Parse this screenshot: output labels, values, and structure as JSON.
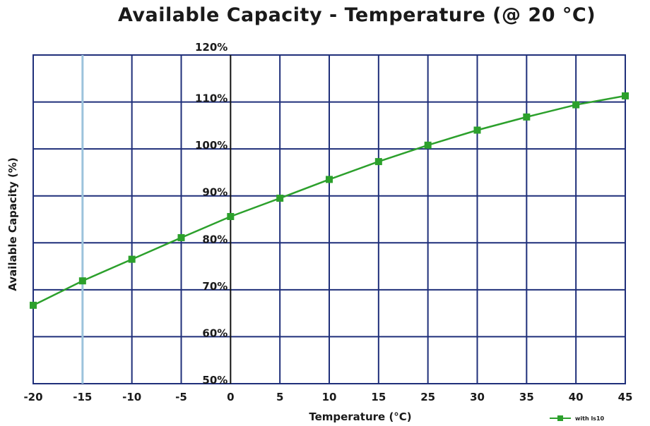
{
  "chart_data": {
    "type": "line",
    "title": "Available Capacity - Temperature (@ 20 °C)",
    "xlabel": "Temperature (°C)",
    "ylabel": "Available Capacity (%)",
    "x_categories": [
      "-20",
      "-15",
      "-10",
      "-5",
      "0",
      "5",
      "10",
      "15",
      "25",
      "30",
      "35",
      "40",
      "45"
    ],
    "y_ticks": [
      "120%",
      "110%",
      "100%",
      "90%",
      "80%",
      "70%",
      "60%",
      "50%"
    ],
    "ylim": [
      50,
      120
    ],
    "grid": true,
    "legend_position": "bottom-right",
    "series": [
      {
        "name": "with ls10",
        "color": "#2ca02c",
        "values": [
          66.7,
          71.9,
          76.5,
          81.1,
          85.6,
          89.5,
          93.5,
          97.3,
          100.8,
          104.0,
          106.8,
          109.4,
          111.3
        ]
      }
    ]
  }
}
